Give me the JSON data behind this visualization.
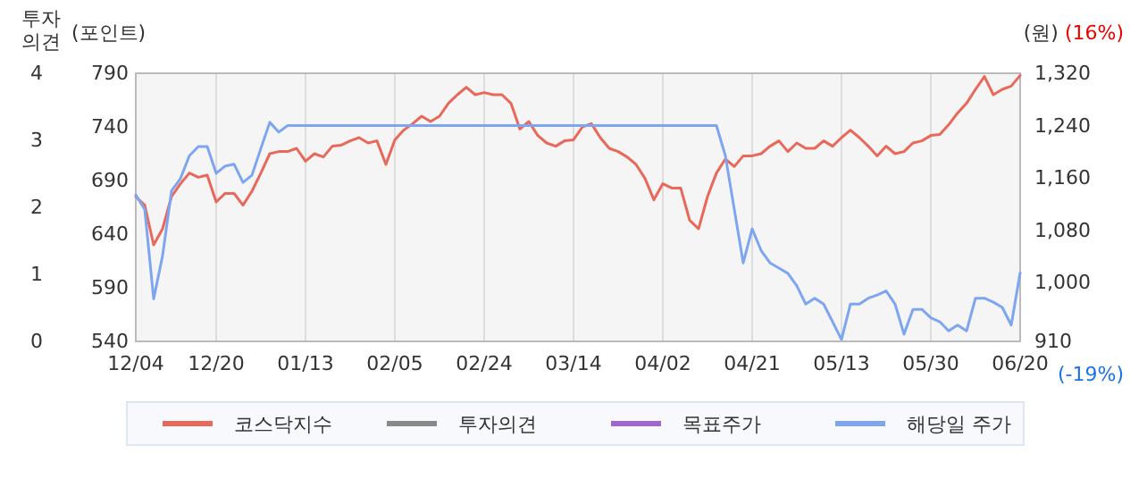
{
  "chart_data": {
    "type": "line",
    "ylabel": "(포인트)",
    "y2label": "(원)",
    "y3label": "투자의견",
    "annotations": [
      "(16%)",
      "(-19%)"
    ],
    "categories": [
      "12/04",
      null,
      null,
      null,
      null,
      null,
      null,
      null,
      null,
      "12/20",
      null,
      null,
      null,
      null,
      null,
      null,
      null,
      null,
      null,
      "01/13",
      null,
      null,
      null,
      null,
      null,
      null,
      null,
      null,
      null,
      "02/05",
      null,
      null,
      null,
      null,
      null,
      null,
      null,
      null,
      null,
      "02/24",
      null,
      null,
      null,
      null,
      null,
      null,
      null,
      null,
      null,
      "03/14",
      null,
      null,
      null,
      null,
      null,
      null,
      null,
      null,
      null,
      "04/02",
      null,
      null,
      null,
      null,
      null,
      null,
      null,
      null,
      null,
      "04/21",
      null,
      null,
      null,
      null,
      null,
      null,
      null,
      null,
      null,
      "05/13",
      null,
      null,
      null,
      null,
      null,
      null,
      null,
      null,
      null,
      "05/30",
      null,
      null,
      null,
      null,
      null,
      null,
      null,
      null,
      null,
      "06/20"
    ],
    "series": [
      {
        "name": "코스닥지수",
        "color": "#e8685a",
        "values": [
          675,
          667,
          630,
          645,
          675,
          687,
          697,
          693,
          695,
          670,
          678,
          678,
          667,
          680,
          697,
          715,
          717,
          717,
          720,
          708,
          715,
          712,
          722,
          723,
          727,
          730,
          725,
          727,
          705,
          728,
          737,
          743,
          750,
          745,
          750,
          762,
          770,
          777,
          770,
          772,
          770,
          770,
          762,
          738,
          745,
          732,
          725,
          722,
          727,
          728,
          740,
          743,
          730,
          720,
          717,
          712,
          705,
          692,
          672,
          687,
          683,
          683,
          653,
          645,
          675,
          697,
          710,
          703,
          713,
          713,
          715,
          722,
          727,
          717,
          725,
          720,
          720,
          727,
          722,
          730,
          737,
          730,
          722,
          713,
          722,
          715,
          717,
          725,
          727,
          732,
          733,
          742,
          753,
          762,
          775,
          787,
          770,
          775,
          778,
          788
        ]
      },
      {
        "name": "투자의견",
        "color": "#888888",
        "axis": "y3",
        "values": [
          null,
          null,
          null,
          null,
          null,
          null,
          null,
          null,
          null,
          null,
          null,
          null,
          null,
          null,
          null,
          null,
          null,
          null,
          null,
          null,
          null,
          null,
          null,
          null,
          null,
          null,
          null,
          null,
          null,
          null,
          null,
          null,
          null,
          null,
          null,
          null,
          null,
          null,
          null,
          null,
          null,
          null,
          null,
          null,
          null,
          null,
          null,
          null,
          null,
          null,
          null,
          null,
          null,
          null,
          null,
          null,
          null,
          null,
          null,
          null,
          null,
          null,
          null,
          null,
          null,
          null,
          null,
          null,
          null,
          null,
          null,
          null,
          null,
          null,
          null,
          null,
          null,
          null,
          null,
          null,
          null,
          null,
          null,
          null,
          null,
          null,
          null,
          null,
          null,
          null,
          null,
          null,
          null,
          null,
          null,
          null,
          null,
          null,
          null,
          null
        ]
      },
      {
        "name": "목표주가",
        "color": "#a066d0",
        "axis": "y2",
        "values": [
          null,
          null,
          null,
          null,
          null,
          null,
          null,
          null,
          null,
          null,
          null,
          null,
          null,
          null,
          null,
          null,
          null,
          null,
          null,
          null,
          null,
          null,
          null,
          null,
          null,
          null,
          null,
          null,
          null,
          null,
          null,
          null,
          null,
          null,
          null,
          null,
          null,
          null,
          null,
          null,
          null,
          null,
          null,
          null,
          null,
          null,
          null,
          null,
          null,
          null,
          null,
          null,
          null,
          null,
          null,
          null,
          null,
          null,
          null,
          null,
          null,
          null,
          null,
          null,
          null,
          null,
          null,
          null,
          null,
          null,
          null,
          null,
          null,
          null,
          null,
          null,
          null,
          null,
          null,
          null,
          null,
          null,
          null,
          null,
          null,
          null,
          null,
          null,
          null,
          null,
          null,
          null,
          null,
          null,
          null,
          null,
          null,
          null,
          null,
          null
        ]
      },
      {
        "name": "해당일 주가",
        "color": "#7ea6f0",
        "axis": "y2",
        "values": [
          1134,
          1112,
          975,
          1041,
          1140,
          1159,
          1194,
          1208,
          1208,
          1167,
          1178,
          1181,
          1153,
          1164,
          1205,
          1245,
          1230,
          1240,
          1240,
          1240,
          1240,
          1240,
          1240,
          1240,
          1240,
          1240,
          1240,
          1240,
          1240,
          1240,
          1240,
          1240,
          1240,
          1240,
          1240,
          1240,
          1240,
          1240,
          1240,
          1240,
          1240,
          1240,
          1240,
          1240,
          1240,
          1240,
          1240,
          1240,
          1240,
          1240,
          1240,
          1240,
          1240,
          1240,
          1240,
          1240,
          1240,
          1240,
          1240,
          1240,
          1240,
          1240,
          1240,
          1240,
          1240,
          1240,
          1194,
          1112,
          1030,
          1082,
          1049,
          1030,
          1022,
          1014,
          995,
          967,
          976,
          967,
          940,
          913,
          967,
          967,
          976,
          981,
          987,
          967,
          921,
          959,
          959,
          946,
          940,
          926,
          935,
          926,
          976,
          976,
          970,
          962,
          935,
          1015
        ]
      }
    ],
    "ylim": [
      540,
      790
    ],
    "yticks": [
      540,
      590,
      640,
      690,
      740,
      790
    ],
    "y2lim": [
      910,
      1320
    ],
    "y2ticks": [
      {
        "value": 910,
        "label": "910"
      },
      {
        "value": 1000,
        "label": "1,000"
      },
      {
        "value": 1080,
        "label": "1,080"
      },
      {
        "value": 1160,
        "label": "1,160"
      },
      {
        "value": 1240,
        "label": "1,240"
      },
      {
        "value": 1320,
        "label": "1,320"
      }
    ],
    "y3lim": [
      0,
      4
    ],
    "y3ticks": [
      0,
      1,
      2,
      3,
      4
    ],
    "grid": "x",
    "legend": "bottom",
    "marker": "none",
    "line_style": "solid"
  }
}
